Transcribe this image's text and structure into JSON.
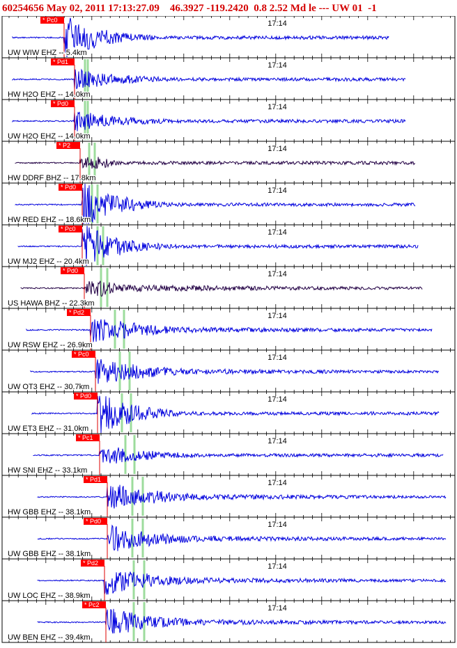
{
  "header": {
    "event_line": "60254656 May 02, 2011 17:13:27.09    46.3927 -119.2420  0.8 2.52 Md le --- UW 01  -1"
  },
  "time_tick_label": "17:14",
  "colors": {
    "header_text": "#d40000",
    "trace_default": "#0000dd",
    "trace_broadband": "#220044",
    "pick_flag": "#ff0000",
    "pick_line": "#dd0000",
    "phase_marker": "#9ddc9d",
    "frame": "#000000"
  },
  "traces": [
    {
      "station_label": "UW WIW EHZ -- 5.4km",
      "pick_label": "* Pc0",
      "channel": "EHZ",
      "amplitude": "clipped"
    },
    {
      "station_label": "HW H2O EHZ -- 14.0km",
      "pick_label": "* Pd1",
      "channel": "EHZ",
      "amplitude": "medium"
    },
    {
      "station_label": "UW H2O EHZ -- 14.0km",
      "pick_label": "* Pd0",
      "channel": "EHZ",
      "amplitude": "medium"
    },
    {
      "station_label": "HW DDRF BHZ -- 17.8km",
      "pick_label": "* P2",
      "channel": "BHZ",
      "amplitude": "medium"
    },
    {
      "station_label": "HW RED EHZ -- 18.6km",
      "pick_label": "* Pd0",
      "channel": "EHZ",
      "amplitude": "clipped"
    },
    {
      "station_label": "UW MJ2 EHZ -- 20.4km",
      "pick_label": "* Pc0",
      "channel": "EHZ",
      "amplitude": "clipped"
    },
    {
      "station_label": "US HAWA BHZ -- 22.3km",
      "pick_label": "* Pd0",
      "channel": "BHZ",
      "amplitude": "large"
    },
    {
      "station_label": "UW RSW EHZ -- 26.9km",
      "pick_label": "* Pd2",
      "channel": "EHZ",
      "amplitude": "large"
    },
    {
      "station_label": "UW OT3 EHZ -- 30.7km",
      "pick_label": "* Pc0",
      "channel": "EHZ",
      "amplitude": "large"
    },
    {
      "station_label": "UW ET3 EHZ -- 31.0km",
      "pick_label": "* Pd0",
      "channel": "EHZ",
      "amplitude": "clipped"
    },
    {
      "station_label": "HW SNI EHZ -- 33.1km",
      "pick_label": "* Pc1",
      "channel": "EHZ",
      "amplitude": "medium"
    },
    {
      "station_label": "HW GBB EHZ -- 38.1km",
      "pick_label": "* Pd1",
      "channel": "EHZ",
      "amplitude": "large"
    },
    {
      "station_label": "UW GBB EHZ -- 38.1km",
      "pick_label": "* Pd0",
      "channel": "EHZ",
      "amplitude": "large"
    },
    {
      "station_label": "UW LOC EHZ -- 38.9km",
      "pick_label": "* Pd2",
      "channel": "EHZ",
      "amplitude": "large"
    },
    {
      "station_label": "UW BEN EHZ -- 39.4km",
      "pick_label": "* Pc2",
      "channel": "EHZ",
      "amplitude": "large"
    }
  ],
  "chart_data": {
    "type": "line",
    "title": "60254656 May 02, 2011 17:13:27.09    46.3927 -119.2420  0.8 2.52 Md le --- UW 01  -1",
    "xlabel": "",
    "ylabel": "",
    "x_tick_labels": [
      "17:14"
    ],
    "grid": false,
    "series": [
      {
        "name": "UW WIW EHZ -- 5.4km"
      },
      {
        "name": "HW H2O EHZ -- 14.0km"
      },
      {
        "name": "UW H2O EHZ -- 14.0km"
      },
      {
        "name": "HW DDRF BHZ -- 17.8km"
      },
      {
        "name": "HW RED EHZ -- 18.6km"
      },
      {
        "name": "UW MJ2 EHZ -- 20.4km"
      },
      {
        "name": "US HAWA BHZ -- 22.3km"
      },
      {
        "name": "UW RSW EHZ -- 26.9km"
      },
      {
        "name": "UW OT3 EHZ -- 30.7km"
      },
      {
        "name": "UW ET3 EHZ -- 31.0km"
      },
      {
        "name": "HW SNI EHZ -- 33.1km"
      },
      {
        "name": "HW GBB EHZ -- 38.1km"
      },
      {
        "name": "UW GBB EHZ -- 38.1km"
      },
      {
        "name": "UW LOC EHZ -- 38.9km"
      },
      {
        "name": "UW BEN EHZ -- 39.4km"
      }
    ]
  }
}
